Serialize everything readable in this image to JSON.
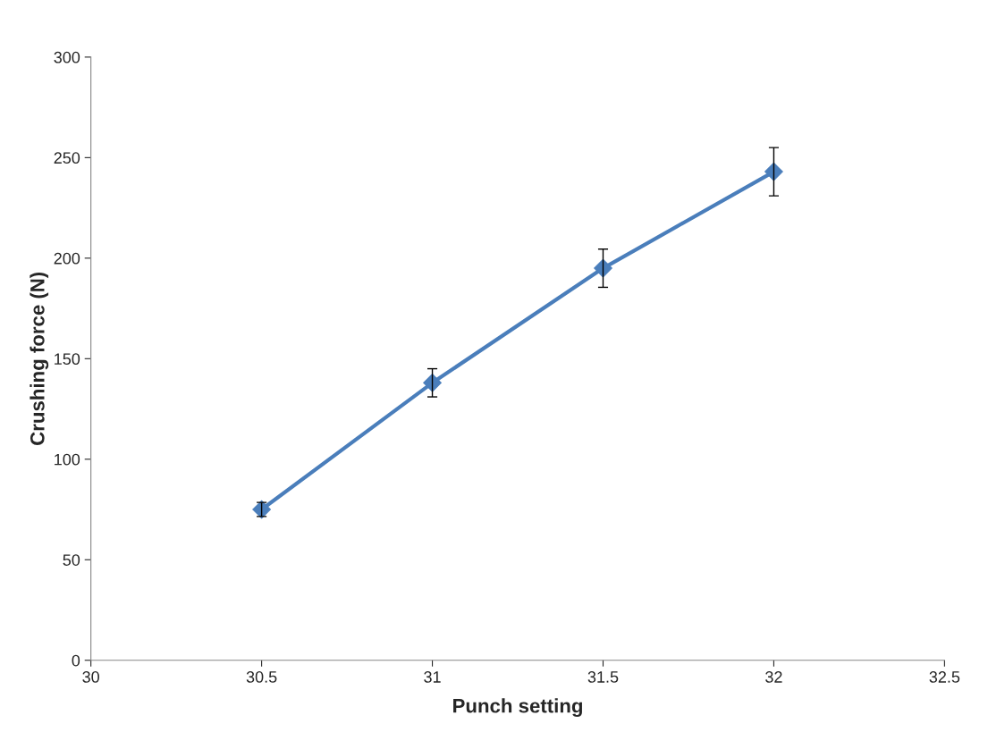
{
  "chart_data": {
    "type": "line",
    "xlabel": "Punch setting",
    "ylabel": "Crushing force (N)",
    "x": [
      30.5,
      31,
      31.5,
      32
    ],
    "series": [
      {
        "color": "#4a7ebb",
        "values": [
          75,
          138,
          195,
          243
        ],
        "errors": [
          3.5,
          7,
          9.5,
          12
        ]
      }
    ],
    "xlim": [
      30,
      32.5
    ],
    "xticks": [
      30,
      30.5,
      31,
      31.5,
      32,
      32.5
    ],
    "ylim": [
      0,
      300
    ],
    "yticks": [
      0,
      50,
      100,
      150,
      200,
      250,
      300
    ],
    "grid": false,
    "marker": "diamond",
    "line_style": "solid"
  }
}
